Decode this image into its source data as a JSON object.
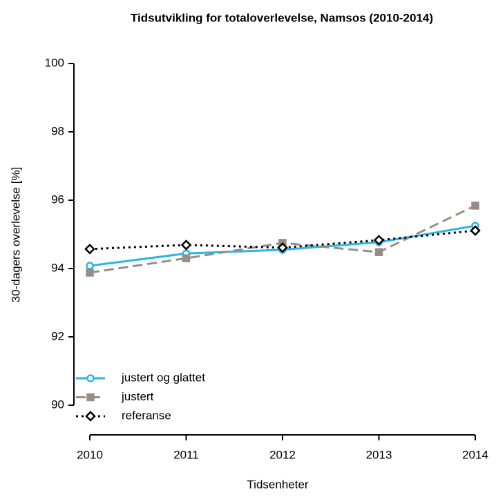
{
  "chart_data": {
    "type": "line",
    "title": "Tidsutvikling for totaloverlevelse, Namsos (2010-2014)",
    "x_label": "Tidsenheter",
    "y_label": "30-dagers overlevelse [%]",
    "x": [
      2010,
      2011,
      2012,
      2013,
      2014
    ],
    "xlim": [
      2010,
      2014
    ],
    "xticks": [
      2010,
      2011,
      2012,
      2013,
      2014
    ],
    "ylim": [
      90,
      100
    ],
    "yticks": [
      90,
      92,
      94,
      96,
      98,
      100
    ],
    "legend": "bottom-left",
    "series": [
      {
        "name": "justert og glattet",
        "color": "#29b5e8",
        "linestyle": "solid",
        "marker": "circle",
        "values": [
          94.08,
          94.44,
          94.55,
          94.77,
          95.25
        ]
      },
      {
        "name": "justert",
        "color": "#988c86",
        "linestyle": "dashed",
        "marker": "square",
        "values": [
          93.88,
          94.3,
          94.75,
          94.48,
          95.84
        ]
      },
      {
        "name": "referanse",
        "color": "#000000",
        "linestyle": "dotted",
        "marker": "diamond",
        "values": [
          94.57,
          94.69,
          94.61,
          94.83,
          95.11
        ]
      }
    ]
  }
}
